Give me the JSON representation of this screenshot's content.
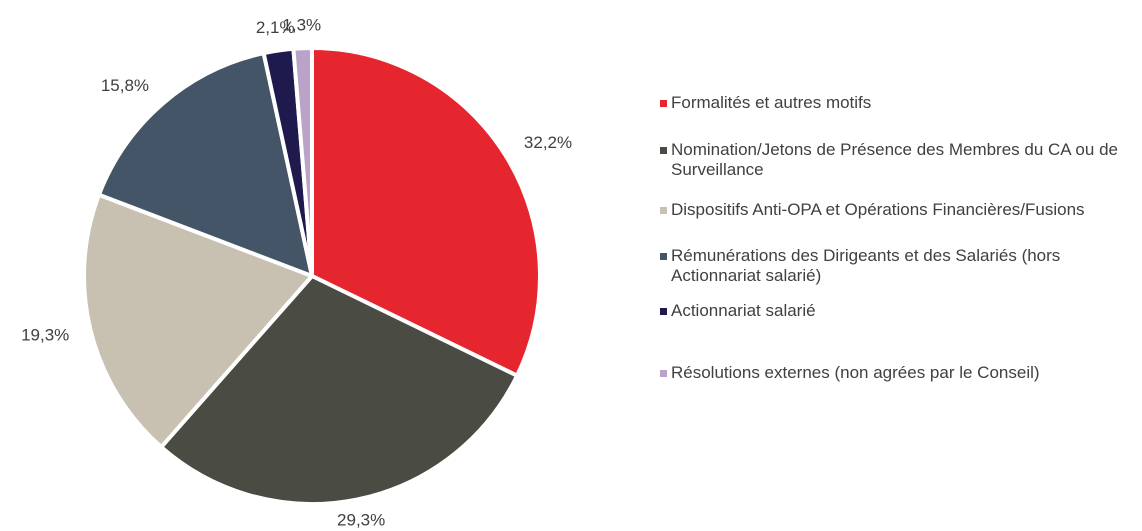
{
  "chart_data": {
    "type": "pie",
    "categories": [
      "Formalités et autres motifs",
      "Nomination/Jetons de Présence des Membres du CA ou de Surveillance",
      "Dispositifs Anti-OPA et Opérations Financières/Fusions",
      "Rémunérations des Dirigeants et des Salariés (hors Actionnariat salarié)",
      "Actionnariat salarié",
      "Résolutions externes (non agrées par le Conseil)"
    ],
    "values": [
      32.2,
      29.3,
      19.3,
      15.8,
      2.1,
      1.3
    ],
    "value_labels": [
      "32,2%",
      "29,3%",
      "19,3%",
      "15,8%",
      "2,1%",
      "1,3%"
    ],
    "colors": [
      "#e5262f",
      "#4a4c43",
      "#c8c1b1",
      "#435566",
      "#1e1a4e",
      "#b9a3c9"
    ],
    "legend": "right"
  }
}
